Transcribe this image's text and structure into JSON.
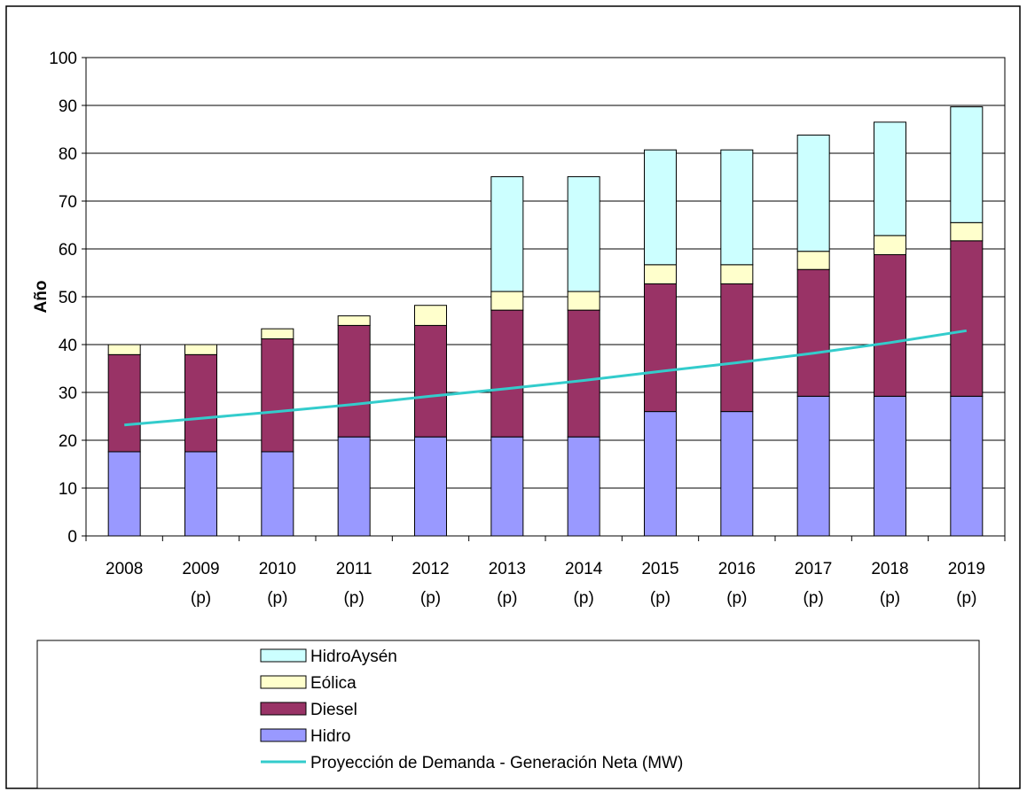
{
  "chart_data": {
    "type": "bar",
    "stacked": true,
    "ylabel": "Año",
    "ylim": [
      0,
      100
    ],
    "yticks": [
      0,
      10,
      20,
      30,
      40,
      50,
      60,
      70,
      80,
      90,
      100
    ],
    "grid": true,
    "legend_position": "bottom",
    "categories": [
      [
        "2008",
        ""
      ],
      [
        "2009",
        "(p)"
      ],
      [
        "2010",
        "(p)"
      ],
      [
        "2011",
        "(p)"
      ],
      [
        "2012",
        "(p)"
      ],
      [
        "2013",
        "(p)"
      ],
      [
        "2014",
        "(p)"
      ],
      [
        "2015",
        "(p)"
      ],
      [
        "2016",
        "(p)"
      ],
      [
        "2017",
        "(p)"
      ],
      [
        "2018",
        "(p)"
      ],
      [
        "2019",
        "(p)"
      ]
    ],
    "series": [
      {
        "name": "Hidro",
        "color": "#9999ff",
        "values": [
          17.6,
          17.6,
          17.6,
          20.7,
          20.7,
          20.7,
          20.7,
          26,
          26,
          29.2,
          29.2,
          29.2
        ]
      },
      {
        "name": "Diesel",
        "color": "#993366",
        "values": [
          20.3,
          20.3,
          23.6,
          23.3,
          23.3,
          26.5,
          26.5,
          26.7,
          26.7,
          26.5,
          29.6,
          32.5
        ]
      },
      {
        "name": "Eólica",
        "color": "#ffffcc",
        "values": [
          2.1,
          2.1,
          2.1,
          2,
          4.2,
          3.9,
          3.9,
          4,
          4,
          3.8,
          4,
          3.8
        ]
      },
      {
        "name": "HidroAysén",
        "color": "#ccffff",
        "values": [
          0,
          0,
          0,
          0,
          0,
          24,
          24,
          24,
          24,
          24.3,
          23.7,
          24.2
        ]
      }
    ],
    "line_series": {
      "name": "Proyección de Demanda - Generación Neta (MW)",
      "color": "#33cccc",
      "values": [
        23.2,
        24.6,
        26,
        27.5,
        29.2,
        30.8,
        32.5,
        34.4,
        36.2,
        38.2,
        40.4,
        42.9
      ]
    },
    "legend_order": [
      "HidroAysén",
      "Eólica",
      "Diesel",
      "Hidro",
      "Proyección de Demanda - Generación Neta (MW)"
    ]
  }
}
